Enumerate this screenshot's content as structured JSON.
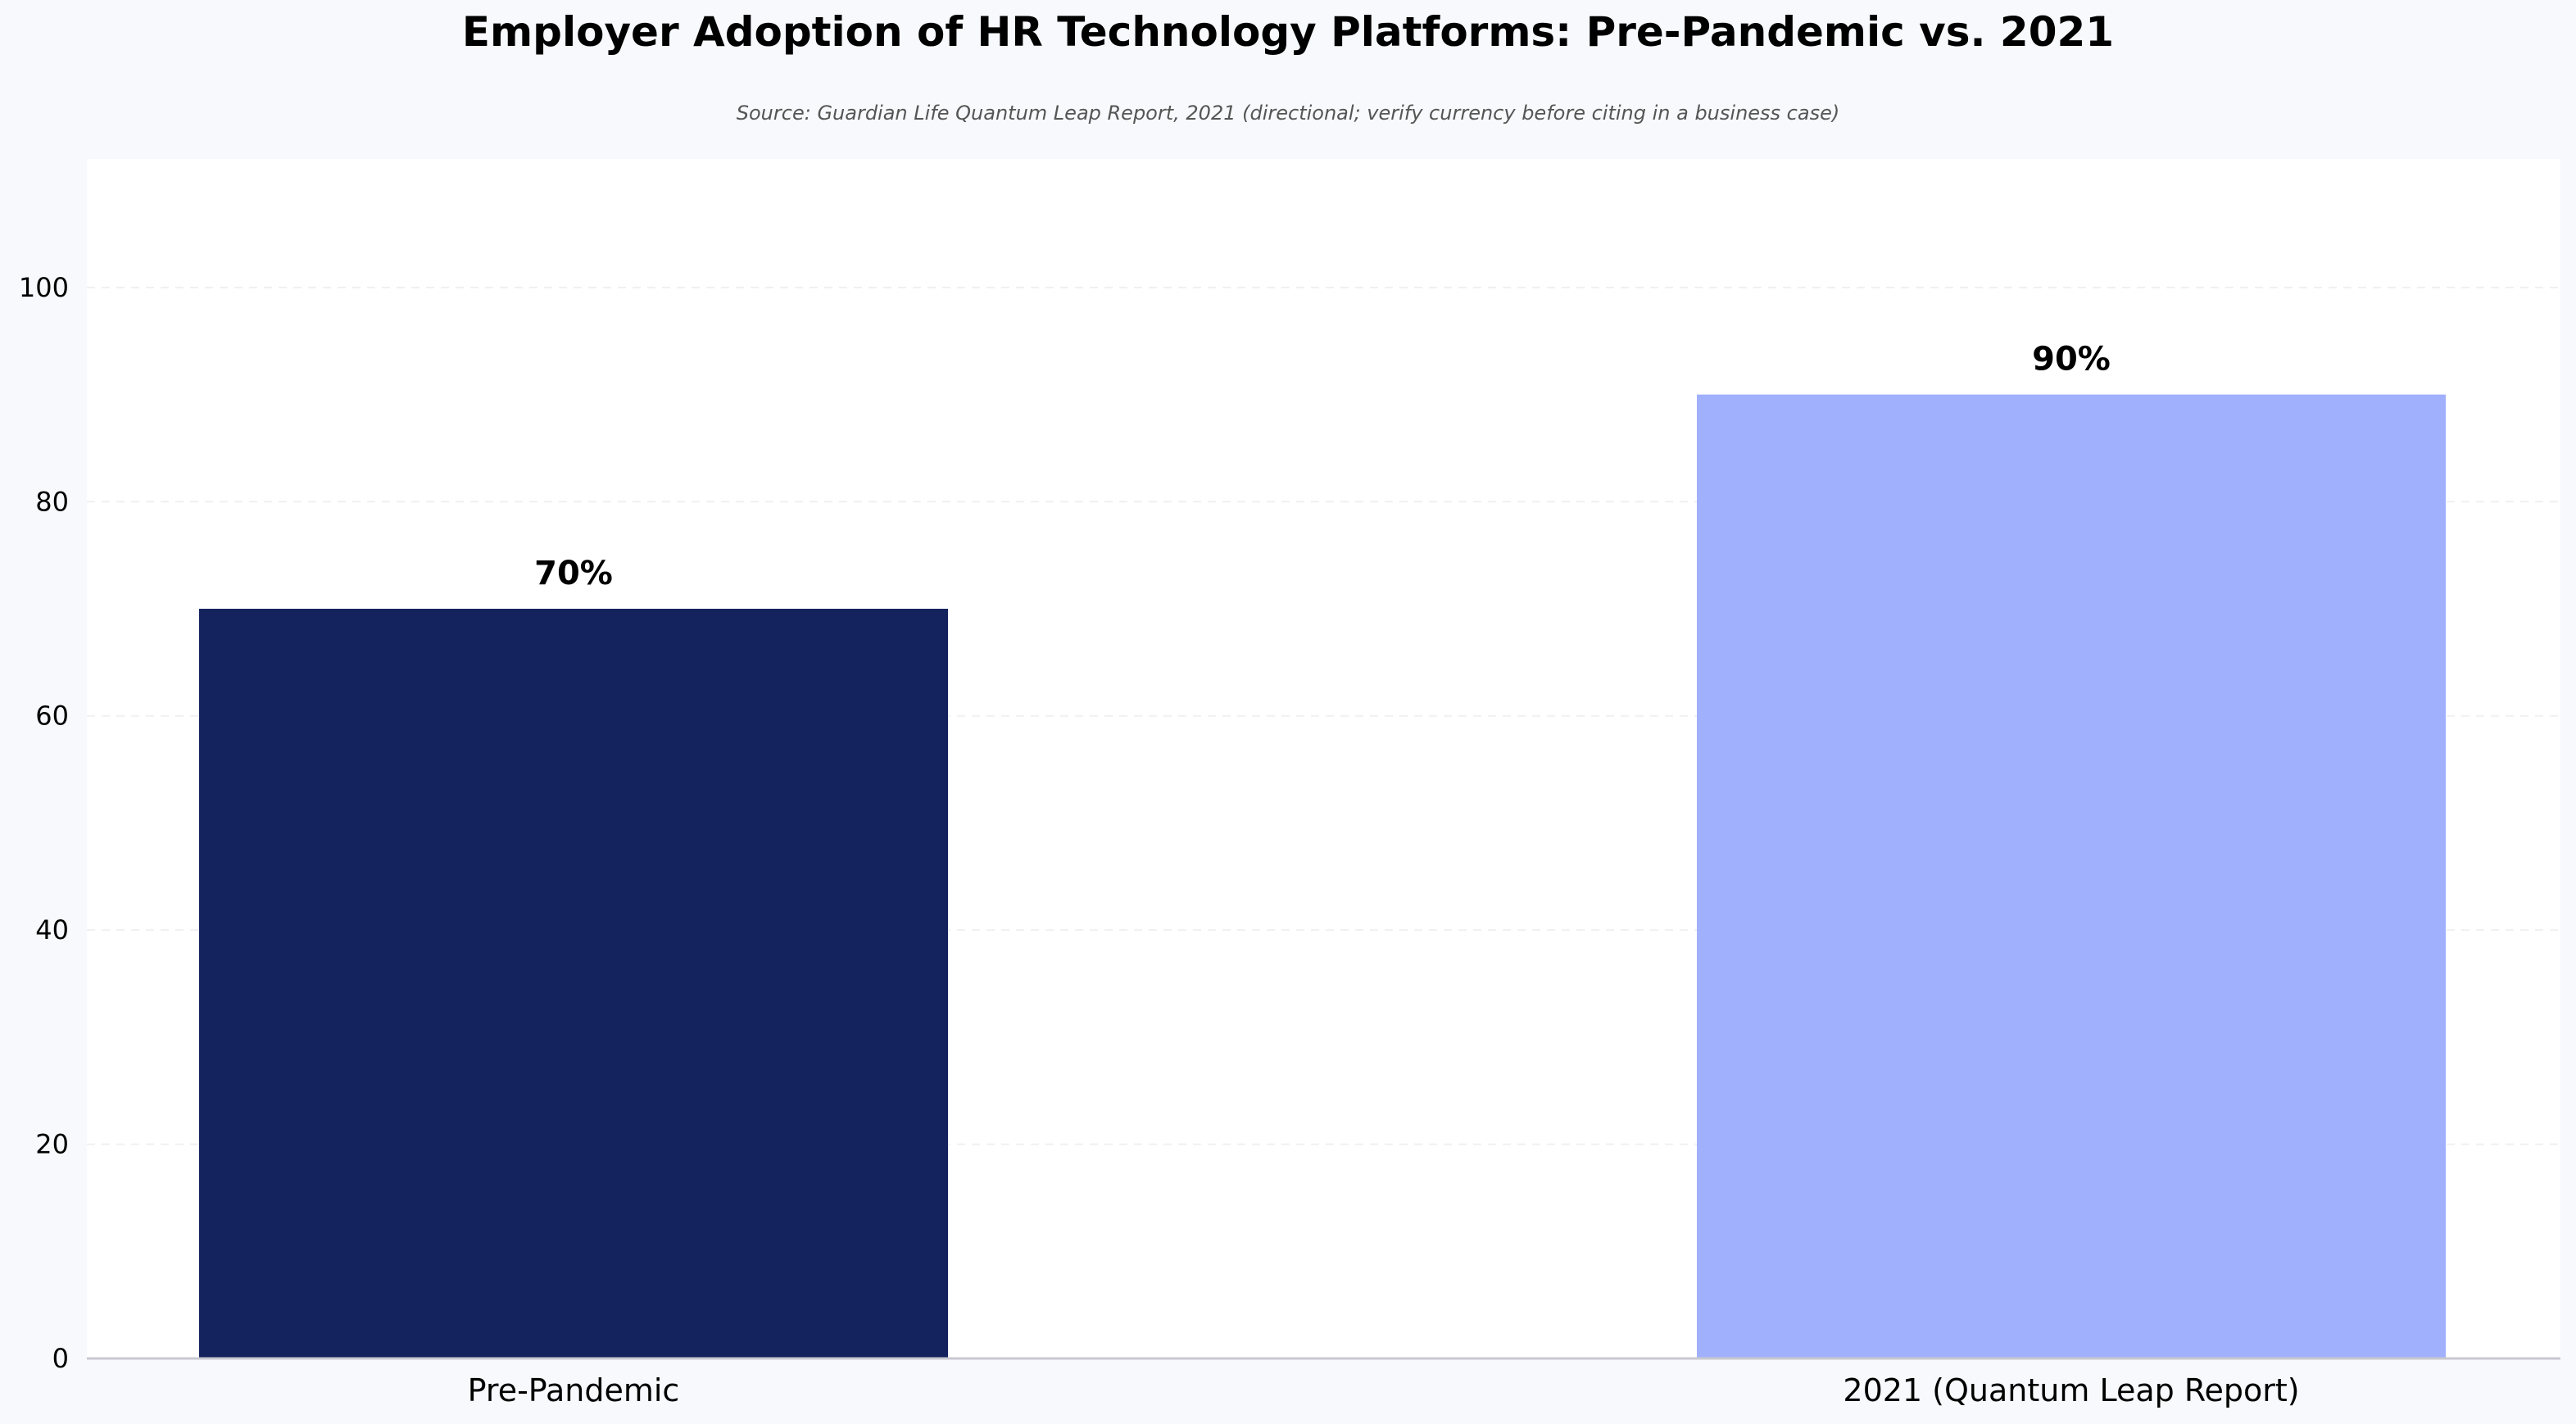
{
  "chart_data": {
    "type": "bar",
    "title": "Employer Adoption of HR Technology Platforms: Pre-Pandemic vs. 2021",
    "subtitle": "Source: Guardian Life Quantum Leap Report, 2021 (directional; verify currency before citing in a business case)",
    "xlabel": "",
    "ylabel": "",
    "categories": [
      "Pre-Pandemic",
      "2021 (Quantum Leap Report)"
    ],
    "values": [
      70,
      90
    ],
    "data_labels": [
      "70%",
      "90%"
    ],
    "bar_colors": [
      "#14235e",
      "#a0b0fc"
    ],
    "ylim": [
      0,
      112
    ],
    "yticks": [
      0,
      20,
      40,
      60,
      80,
      100
    ],
    "grid": true,
    "legend": "none"
  }
}
